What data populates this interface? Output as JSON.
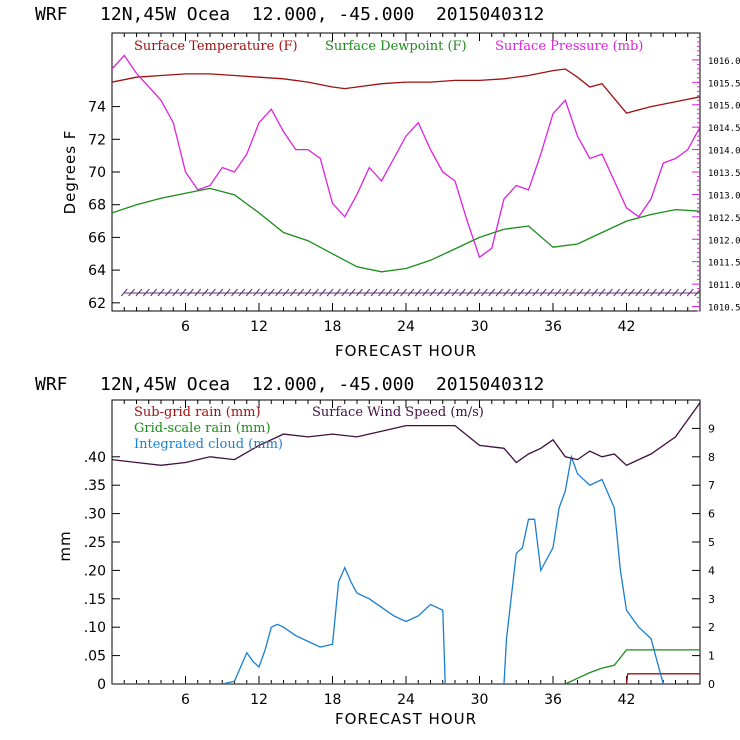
{
  "chart_data": [
    {
      "type": "line",
      "title": "WRF   12N,45W Ocea  12.000, -45.000  2015040312",
      "xlabel": "FORECAST HOUR",
      "ylabel": "Degrees F",
      "xlim": [
        0,
        48
      ],
      "ylim": [
        61.5,
        78.5
      ],
      "y2lim": [
        1010.4,
        1016.6
      ],
      "x_ticks": [
        6,
        12,
        18,
        24,
        30,
        36,
        42
      ],
      "x_tick_labels": [
        "6",
        "12",
        "18",
        "24",
        "30",
        "36",
        "42"
      ],
      "y_ticks": [
        62,
        64,
        66,
        68,
        70,
        72,
        74
      ],
      "y_tick_labels": [
        "62",
        "64",
        "66",
        "68",
        "70",
        "72",
        "74"
      ],
      "y2_ticks": [
        1010.5,
        1011.0,
        1011.5,
        1012.0,
        1012.5,
        1013.0,
        1013.5,
        1014.0,
        1014.5,
        1015.0,
        1015.5,
        1016.0
      ],
      "y2_tick_labels": [
        "1010.5",
        "1011.0",
        "1011.5",
        "1012.0",
        "1012.5",
        "1013.0",
        "1013.5",
        "1014.0",
        "1014.5",
        "1015.0",
        "1015.5",
        "1016.0"
      ],
      "legend": [
        "Surface Temperature (F)",
        "Surface Dewpoint (F)",
        "Surface Pressure (mb)"
      ],
      "colors": {
        "temperature": "#a01010",
        "dewpoint": "#1a8c1a",
        "pressure": "#dd22dd",
        "wind_barbs": "#603070"
      },
      "series": [
        {
          "name": "Surface Temperature (F)",
          "axis": "left",
          "x": [
            0,
            2,
            4,
            6,
            8,
            10,
            12,
            14,
            16,
            18,
            19,
            20,
            22,
            24,
            26,
            28,
            30,
            32,
            34,
            36,
            37,
            38,
            39,
            40,
            42,
            44,
            46,
            48
          ],
          "values": [
            75.5,
            75.8,
            75.9,
            76,
            76,
            75.9,
            75.8,
            75.7,
            75.5,
            75.2,
            75.1,
            75.2,
            75.4,
            75.5,
            75.5,
            75.6,
            75.6,
            75.7,
            75.9,
            76.2,
            76.3,
            75.8,
            75.2,
            75.4,
            73.6,
            74,
            74.3,
            74.6
          ]
        },
        {
          "name": "Surface Dewpoint (F)",
          "axis": "left",
          "x": [
            0,
            2,
            4,
            6,
            8,
            10,
            12,
            14,
            16,
            18,
            20,
            22,
            24,
            26,
            28,
            30,
            32,
            34,
            36,
            38,
            40,
            42,
            44,
            46,
            48
          ],
          "values": [
            67.5,
            68,
            68.4,
            68.7,
            69,
            68.6,
            67.5,
            66.3,
            65.8,
            65,
            64.2,
            63.9,
            64.1,
            64.6,
            65.3,
            66,
            66.5,
            66.7,
            65.4,
            65.6,
            66.3,
            67,
            67.4,
            67.7,
            67.6
          ]
        },
        {
          "name": "Surface Pressure (mb)",
          "axis": "right",
          "x": [
            0,
            1,
            2,
            3,
            4,
            5,
            6,
            7,
            8,
            9,
            10,
            11,
            12,
            13,
            14,
            15,
            16,
            17,
            18,
            19,
            20,
            21,
            22,
            23,
            24,
            25,
            26,
            27,
            28,
            29,
            30,
            31,
            32,
            33,
            34,
            35,
            36,
            37,
            38,
            39,
            40,
            41,
            42,
            43,
            44,
            45,
            46,
            47,
            48
          ],
          "values": [
            1015.8,
            1016.1,
            1015.7,
            1015.4,
            1015.1,
            1014.6,
            1013.5,
            1013.1,
            1013.2,
            1013.6,
            1013.5,
            1013.9,
            1014.6,
            1014.9,
            1014.4,
            1014.0,
            1014.0,
            1013.8,
            1012.8,
            1012.5,
            1013.0,
            1013.6,
            1013.3,
            1013.8,
            1014.3,
            1014.6,
            1014.0,
            1013.5,
            1013.3,
            1012.4,
            1011.6,
            1011.8,
            1012.9,
            1013.2,
            1013.1,
            1013.9,
            1014.8,
            1015.1,
            1014.3,
            1013.8,
            1013.9,
            1013.3,
            1012.7,
            1012.5,
            1012.9,
            1013.7,
            1013.8,
            1014.0,
            1014.5
          ]
        },
        {
          "name": "Wind barbs",
          "axis": "left",
          "y_value": 62.6,
          "x_start": 1,
          "x_end": 48,
          "x_step": 0.6
        }
      ]
    },
    {
      "type": "line",
      "title": "WRF   12N,45W Ocea  12.000, -45.000  2015040312",
      "xlabel": "FORECAST HOUR",
      "ylabel": "mm",
      "xlim": [
        0,
        48
      ],
      "ylim": [
        0,
        0.5
      ],
      "y2lim": [
        0,
        10
      ],
      "x_ticks": [
        6,
        12,
        18,
        24,
        30,
        36,
        42
      ],
      "x_tick_labels": [
        "6",
        "12",
        "18",
        "24",
        "30",
        "36",
        "42"
      ],
      "y_ticks": [
        0,
        0.05,
        0.1,
        0.15,
        0.2,
        0.25,
        0.3,
        0.35,
        0.4
      ],
      "y_tick_labels": [
        "0",
        ".05",
        ".10",
        ".15",
        ".20",
        ".25",
        ".30",
        ".35",
        ".40"
      ],
      "y2_ticks": [
        0,
        1,
        2,
        3,
        4,
        5,
        6,
        7,
        8,
        9
      ],
      "y2_tick_labels": [
        "0",
        "1",
        "2",
        "3",
        "4",
        "5",
        "6",
        "7",
        "8",
        "9"
      ],
      "legend": [
        "Sub-grid rain (mm)",
        "Grid-scale rain (mm)",
        "Integrated cloud (mm)",
        "Surface Wind Speed (m/s)"
      ],
      "colors": {
        "subgrid": "#a01010",
        "gridscale": "#1a8c1a",
        "cloud": "#1a7fd0",
        "wind": "#401040"
      },
      "series": [
        {
          "name": "Sub-grid rain (mm)",
          "axis": "left",
          "x": [
            0,
            42,
            42.1,
            48
          ],
          "values": [
            0,
            0,
            0.018,
            0.018
          ]
        },
        {
          "name": "Grid-scale rain (mm)",
          "axis": "left",
          "x": [
            0,
            37,
            38,
            39,
            40,
            41,
            42,
            48
          ],
          "values": [
            0,
            0,
            0.01,
            0.02,
            0.028,
            0.033,
            0.06,
            0.06
          ]
        },
        {
          "name": "Integrated cloud (mm)",
          "axis": "left",
          "x": [
            0,
            9,
            10,
            10.5,
            11,
            11.5,
            12,
            12.5,
            13,
            13.5,
            14,
            15,
            16,
            17,
            18,
            18.5,
            19,
            19.5,
            20,
            21,
            22,
            23,
            24,
            25,
            26,
            27,
            27.2,
            32,
            32.2,
            33,
            33.5,
            34,
            34.5,
            35,
            35.5,
            36,
            36.5,
            37,
            37.5,
            38,
            39,
            40,
            41,
            41.5,
            42,
            43,
            44,
            44.5,
            45
          ],
          "values": [
            0,
            0,
            0.005,
            0.03,
            0.055,
            0.04,
            0.03,
            0.06,
            0.1,
            0.105,
            0.1,
            0.085,
            0.075,
            0.065,
            0.07,
            0.18,
            0.205,
            0.18,
            0.16,
            0.15,
            0.135,
            0.12,
            0.11,
            0.12,
            0.14,
            0.13,
            0,
            0,
            0.08,
            0.23,
            0.24,
            0.29,
            0.29,
            0.2,
            0.22,
            0.24,
            0.31,
            0.34,
            0.4,
            0.37,
            0.35,
            0.36,
            0.31,
            0.2,
            0.13,
            0.1,
            0.08,
            0.04,
            0
          ]
        },
        {
          "name": "Surface Wind Speed (m/s)",
          "axis": "right",
          "x": [
            0,
            2,
            4,
            6,
            8,
            10,
            12,
            14,
            16,
            18,
            20,
            22,
            24,
            26,
            28,
            30,
            32,
            33,
            34,
            35,
            36,
            37,
            38,
            39,
            40,
            41,
            42,
            43,
            44,
            46,
            48
          ],
          "values": [
            7.9,
            7.8,
            7.7,
            7.8,
            8.0,
            7.9,
            8.4,
            8.8,
            8.7,
            8.8,
            8.7,
            8.9,
            9.1,
            9.1,
            9.1,
            8.4,
            8.3,
            7.8,
            8.1,
            8.3,
            8.6,
            8.0,
            7.9,
            8.2,
            8.0,
            8.1,
            7.7,
            7.9,
            8.1,
            8.7,
            9.9
          ]
        }
      ]
    }
  ]
}
